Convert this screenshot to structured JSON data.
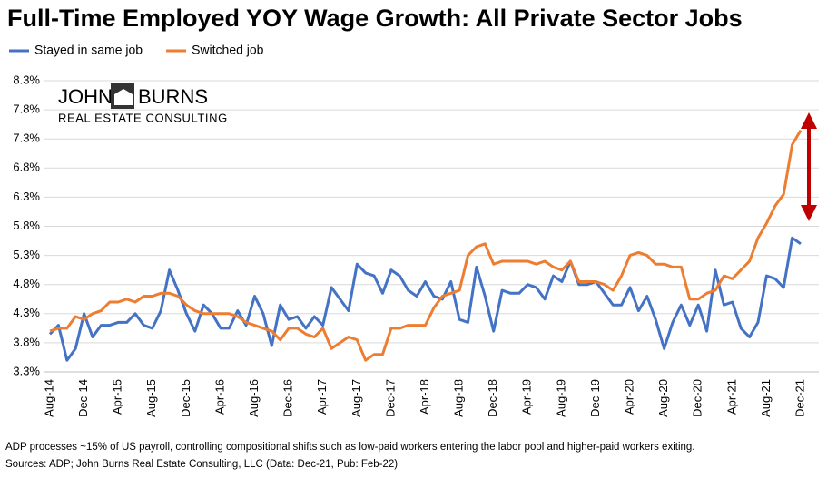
{
  "chart_data": {
    "type": "line",
    "title": "Full-Time Employed YOY Wage Growth: All Private Sector Jobs",
    "logo": {
      "line1": "JOHN",
      "line2": "BURNS",
      "line3": "REAL ESTATE CONSULTING"
    },
    "notes": [
      "ADP processes ~15% of US payroll, controlling compositional shifts such as low-paid workers entering the labor pool and higher-paid workers exiting.",
      "Sources: ADP; John Burns Real Estate Consulting, LLC (Data: Dec-21, Pub: Feb-22)"
    ],
    "categories": [
      "Aug-14",
      null,
      null,
      null,
      "Dec-14",
      null,
      null,
      null,
      "Apr-15",
      null,
      null,
      null,
      "Aug-15",
      null,
      null,
      null,
      "Dec-15",
      null,
      null,
      null,
      "Apr-16",
      null,
      null,
      null,
      "Aug-16",
      null,
      null,
      null,
      "Dec-16",
      null,
      null,
      null,
      "Apr-17",
      null,
      null,
      null,
      "Aug-17",
      null,
      null,
      null,
      "Dec-17",
      null,
      null,
      null,
      "Apr-18",
      null,
      null,
      null,
      "Aug-18",
      null,
      null,
      null,
      "Dec-18",
      null,
      null,
      null,
      "Apr-19",
      null,
      null,
      null,
      "Aug-19",
      null,
      null,
      null,
      "Dec-19",
      null,
      null,
      null,
      "Apr-20",
      null,
      null,
      null,
      "Aug-20",
      null,
      null,
      null,
      "Dec-20",
      null,
      null,
      null,
      "Apr-21",
      null,
      null,
      null,
      "Aug-21",
      null,
      null,
      null,
      "Dec-21"
    ],
    "series": [
      {
        "name": "Stayed in same job",
        "color": "#4472c4",
        "values": [
          3.95,
          4.1,
          3.5,
          3.7,
          4.3,
          3.9,
          4.1,
          4.1,
          4.15,
          4.15,
          4.3,
          4.1,
          4.05,
          4.35,
          5.05,
          4.7,
          4.3,
          4.0,
          4.45,
          4.3,
          4.05,
          4.05,
          4.35,
          4.1,
          4.6,
          4.3,
          3.75,
          4.45,
          4.2,
          4.25,
          4.05,
          4.25,
          4.1,
          4.75,
          4.55,
          4.35,
          5.15,
          5.0,
          4.95,
          4.65,
          5.05,
          4.95,
          4.7,
          4.6,
          4.85,
          4.6,
          4.55,
          4.85,
          4.2,
          4.15,
          5.1,
          4.6,
          4.0,
          4.7,
          4.65,
          4.65,
          4.8,
          4.75,
          4.55,
          4.95,
          4.85,
          5.2,
          4.8,
          4.8,
          4.85,
          4.65,
          4.45,
          4.45,
          4.75,
          4.35,
          4.6,
          4.2,
          3.7,
          4.15,
          4.45,
          4.1,
          4.45,
          4.0,
          5.05,
          4.45,
          4.5,
          4.05,
          3.9,
          4.15,
          4.95,
          4.9,
          4.75,
          5.6,
          5.5
        ]
      },
      {
        "name": "Switched job",
        "color": "#ed7d31",
        "values": [
          4.0,
          4.05,
          4.05,
          4.25,
          4.2,
          4.3,
          4.35,
          4.5,
          4.5,
          4.55,
          4.5,
          4.6,
          4.6,
          4.65,
          4.65,
          4.6,
          4.45,
          4.35,
          4.3,
          4.3,
          4.3,
          4.3,
          4.25,
          4.15,
          4.1,
          4.05,
          4.0,
          3.85,
          4.05,
          4.05,
          3.95,
          3.9,
          4.05,
          3.7,
          3.8,
          3.9,
          3.85,
          3.5,
          3.6,
          3.6,
          4.05,
          4.05,
          4.1,
          4.1,
          4.1,
          4.4,
          4.6,
          4.65,
          4.7,
          5.3,
          5.45,
          5.5,
          5.15,
          5.2,
          5.2,
          5.2,
          5.2,
          5.15,
          5.2,
          5.1,
          5.05,
          5.2,
          4.85,
          4.85,
          4.85,
          4.8,
          4.7,
          4.95,
          5.3,
          5.35,
          5.3,
          5.15,
          5.15,
          5.1,
          5.1,
          4.55,
          4.55,
          4.65,
          4.7,
          4.95,
          4.9,
          5.05,
          5.2,
          5.6,
          5.85,
          6.15,
          6.35,
          7.2,
          7.45
        ]
      }
    ],
    "ylim": [
      3.3,
      8.3
    ],
    "yticks": [
      {
        "value": 3.3,
        "label": "3.3%"
      },
      {
        "value": 3.8,
        "label": "3.8%"
      },
      {
        "value": 4.3,
        "label": "4.3%"
      },
      {
        "value": 4.8,
        "label": "4.8%"
      },
      {
        "value": 5.3,
        "label": "5.3%"
      },
      {
        "value": 5.8,
        "label": "5.8%"
      },
      {
        "value": 6.3,
        "label": "6.3%"
      },
      {
        "value": 6.8,
        "label": "6.8%"
      },
      {
        "value": 7.3,
        "label": "7.3%"
      },
      {
        "value": 7.8,
        "label": "7.8%"
      },
      {
        "value": 8.3,
        "label": "8.3%"
      }
    ],
    "grid": true,
    "legend": "top-left"
  }
}
